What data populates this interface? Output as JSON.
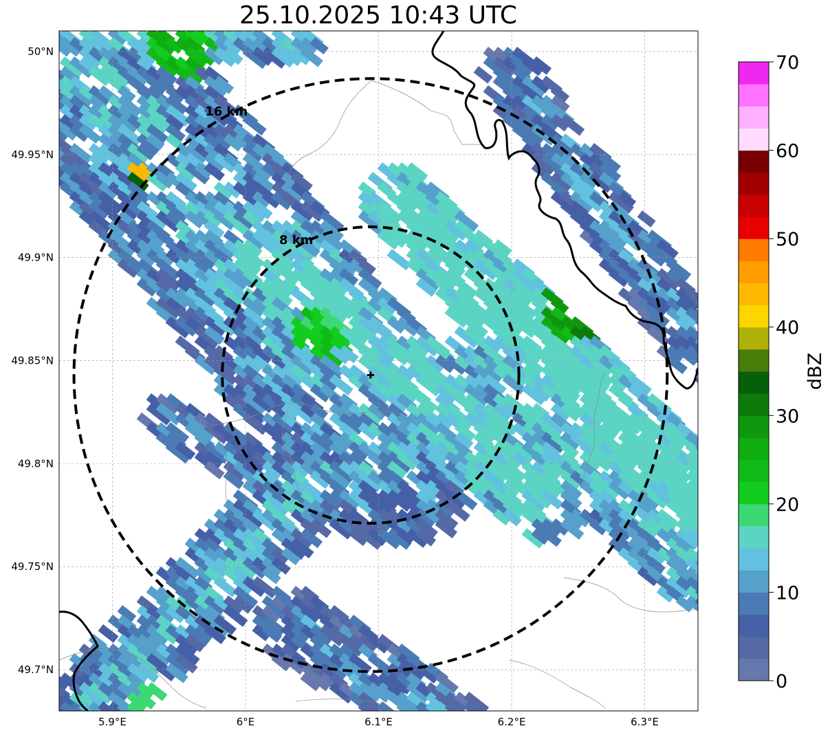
{
  "title": "25.10.2025 10:43 UTC",
  "map": {
    "lon_range": [
      5.86,
      6.34
    ],
    "lat_range": [
      49.68,
      50.01
    ],
    "lat_ticks": [
      {
        "value": 50.0,
        "label": "50°N"
      },
      {
        "value": 49.95,
        "label": "49.95°N"
      },
      {
        "value": 49.9,
        "label": "49.9°N"
      },
      {
        "value": 49.85,
        "label": "49.85°N"
      },
      {
        "value": 49.8,
        "label": "49.8°N"
      },
      {
        "value": 49.75,
        "label": "49.75°N"
      },
      {
        "value": 49.7,
        "label": "49.7°N"
      }
    ],
    "lon_ticks": [
      {
        "value": 5.9,
        "label": "5.9°E"
      },
      {
        "value": 6.0,
        "label": "6°E"
      },
      {
        "value": 6.1,
        "label": "6.1°E"
      },
      {
        "value": 6.2,
        "label": "6.2°E"
      },
      {
        "value": 6.3,
        "label": "6.3°E"
      }
    ],
    "radar_site": {
      "lon": 6.094,
      "lat": 49.843
    },
    "rings": [
      {
        "label": "8 km",
        "radius_km": 8
      },
      {
        "label": "16 km",
        "radius_km": 16
      }
    ],
    "ring_style": "black dashed",
    "gridlines": true,
    "layers": [
      "radar reflectivity",
      "national border",
      "admin boundaries",
      "range rings"
    ]
  },
  "colorbar": {
    "label": "dBZ",
    "min": 0,
    "max": 70,
    "tick_labels": [
      "0",
      "10",
      "20",
      "30",
      "40",
      "50",
      "60",
      "70"
    ],
    "colors": [
      "#6778ad",
      "#5569a6",
      "#4660a7",
      "#4b7bb5",
      "#56a0cc",
      "#62c1df",
      "#5cd4c4",
      "#3dd873",
      "#12cc1e",
      "#11bb17",
      "#0fad12",
      "#0f9710",
      "#0c7b0c",
      "#065f09",
      "#4a7c0a",
      "#b0b00a",
      "#ffd500",
      "#ffb800",
      "#ff9c00",
      "#ff7c00",
      "#e60000",
      "#c80000",
      "#a00000",
      "#780000",
      "#ffdcff",
      "#ffb0ff",
      "#ff72ff",
      "#f028ef"
    ]
  }
}
